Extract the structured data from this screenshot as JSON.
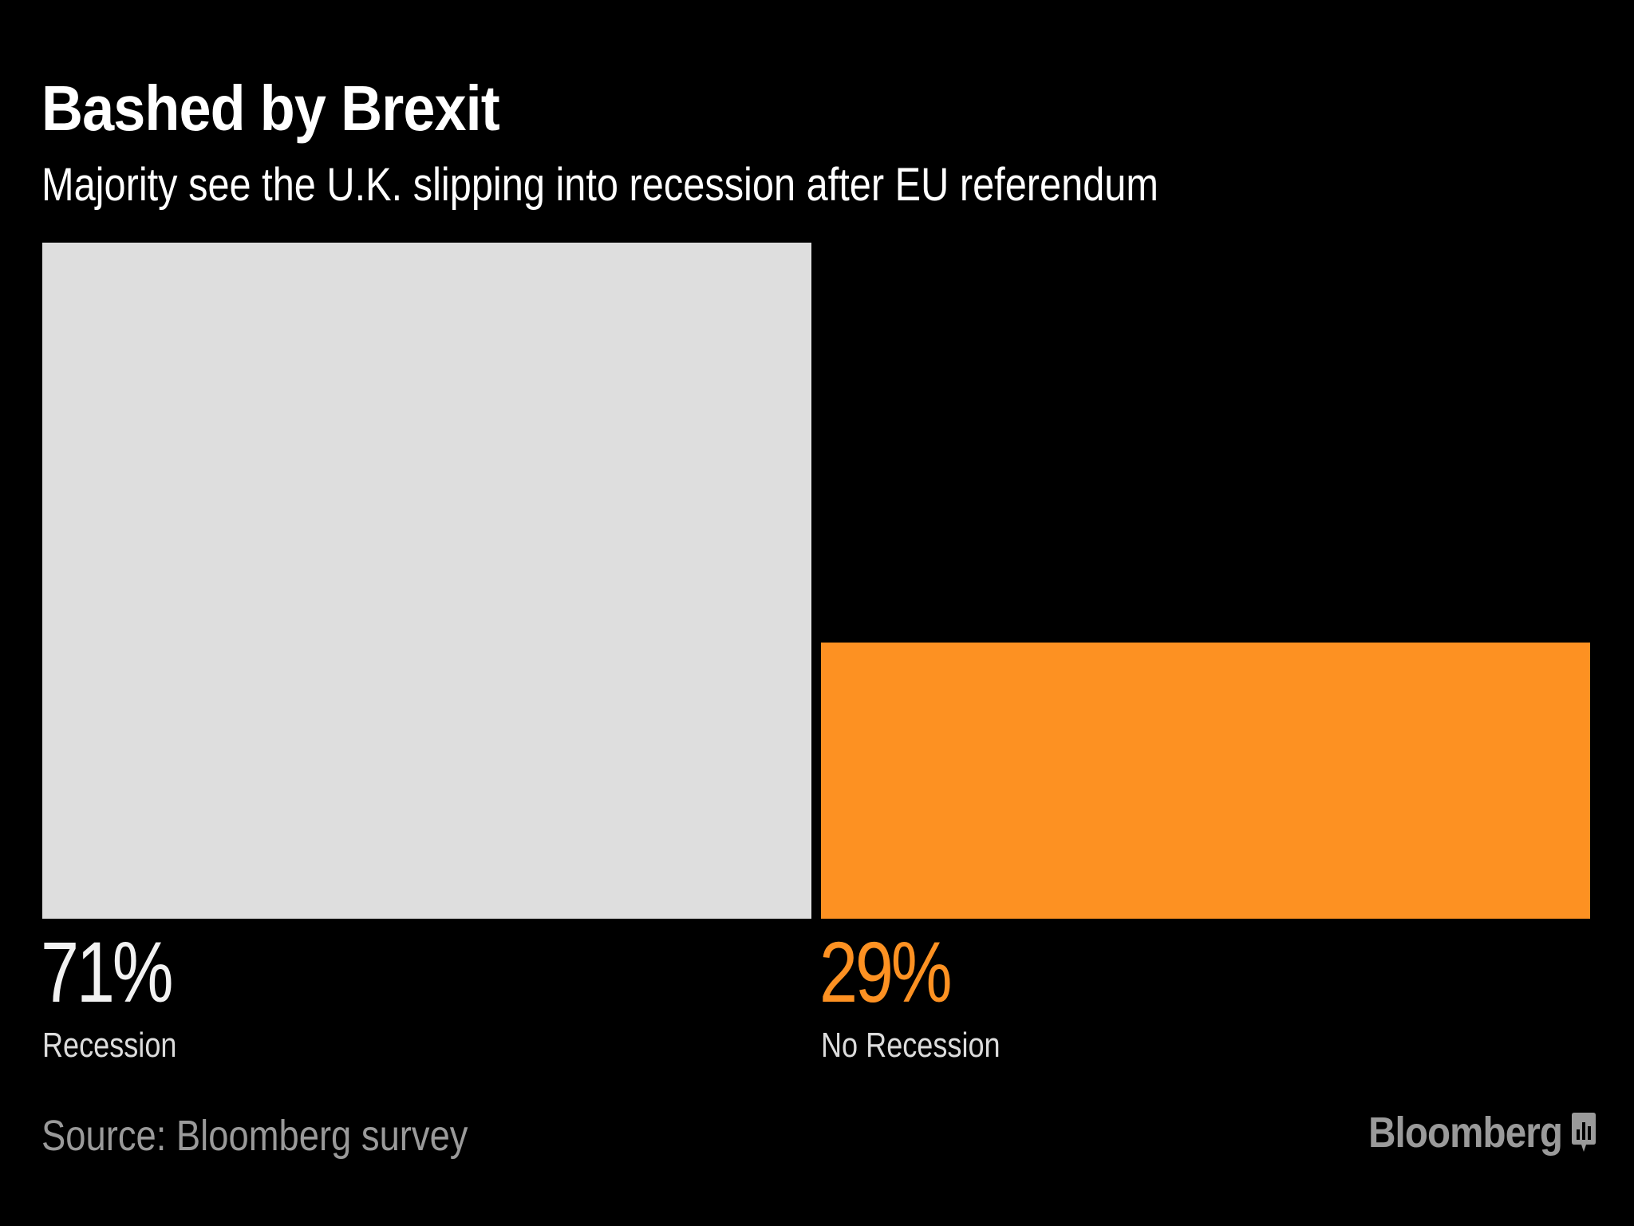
{
  "chart_data": {
    "type": "bar",
    "title": "Bashed by Brexit",
    "subtitle": "Majority see the U.K. slipping into recession after EU referendum",
    "categories": [
      "Recession",
      "No Recession"
    ],
    "values": [
      71,
      29
    ],
    "value_labels": [
      "71%",
      "29%"
    ],
    "unit": "%",
    "ylim": [
      0,
      71
    ],
    "colors": [
      "#dedede",
      "#fd9122"
    ],
    "grid": false,
    "legend": "none"
  },
  "footer": {
    "source": "Source: Bloomberg survey",
    "brand": "Bloomberg",
    "brand_icon": "bloomberg-logo-icon"
  }
}
